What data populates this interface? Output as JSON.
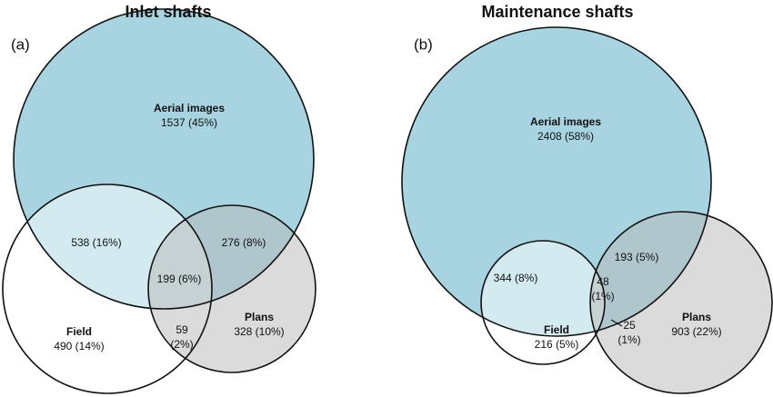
{
  "panels": [
    {
      "title": "Inlet shafts",
      "tag": "(a)",
      "regions": [
        {
          "label": "Aerial images",
          "lines": [
            "1537 (45%)"
          ]
        },
        {
          "lines": [
            "538 (16%)"
          ]
        },
        {
          "lines": [
            "276 (8%)"
          ]
        },
        {
          "lines": [
            "199 (6%)"
          ]
        },
        {
          "label": "Field",
          "lines": [
            "490 (14%)"
          ]
        },
        {
          "label": "Plans",
          "lines": [
            "328 (10%)"
          ]
        },
        {
          "lines": [
            "59",
            "(2%)"
          ]
        }
      ]
    },
    {
      "title": "Maintenance shafts",
      "tag": "(b)",
      "regions": [
        {
          "label": "Aerial images",
          "lines": [
            "2408 (58%)"
          ]
        },
        {
          "lines": [
            "344 (8%)"
          ]
        },
        {
          "lines": [
            "193 (5%)"
          ]
        },
        {
          "lines": [
            "48",
            "(1%)"
          ]
        },
        {
          "label": "Field",
          "lines": [
            "216 (5%)"
          ]
        },
        {
          "label": "Plans",
          "lines": [
            "903 (22%)"
          ]
        },
        {
          "lines": [
            "25",
            "(1%)"
          ]
        }
      ]
    }
  ]
}
